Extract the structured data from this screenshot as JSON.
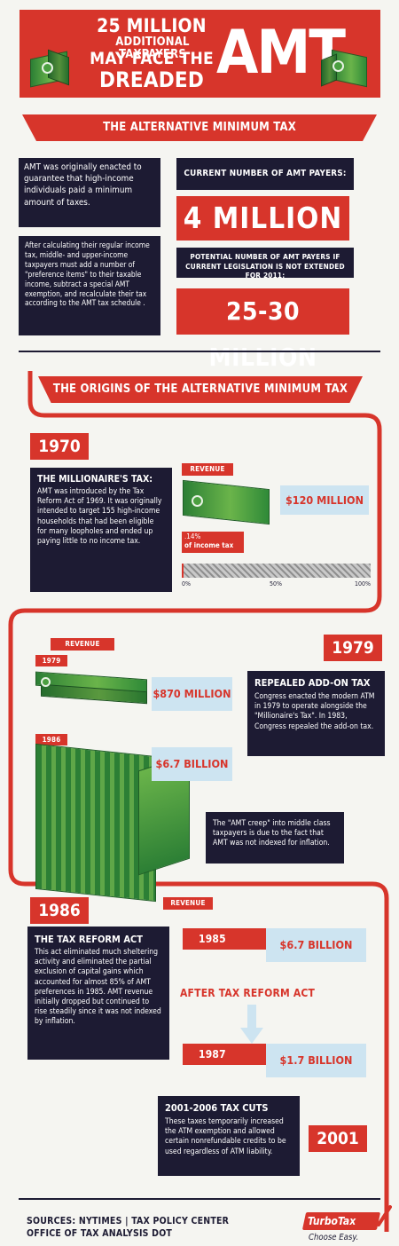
{
  "header": {
    "line1": "25 MILLION",
    "line2": "ADDITIONAL TAXPAYERS",
    "line3": "MAY FACE THE",
    "line4": "DREADED",
    "big": "AMT"
  },
  "section1": {
    "title": "THE ALTERNATIVE MINIMUM TAX",
    "intro": "AMT was originally enacted to guarantee that high-income individuals paid a minimum amount of taxes.",
    "detail": "After calculating their regular income tax, middle- and upper-income taxpayers must add a number of \"preference items\" to their taxable income, subtract a special AMT exemption, and recalculate their tax according to the AMT tax schedule .",
    "current_label": "CURRENT NUMBER OF AMT PAYERS:",
    "current_value": "4 MILLION",
    "potential_label": "POTENTIAL NUMBER OF AMT PAYERS IF CURRENT LEGISLATION IS NOT EXTENDED FOR 2011:",
    "potential_value": "25-30 MILLION"
  },
  "origins": {
    "title": "THE ORIGINS OF THE ALTERNATIVE MINIMUM TAX"
  },
  "y1970": {
    "year": "1970",
    "heading": "THE MILLIONAIRE'S TAX:",
    "body": "AMT was introduced by the Tax Reform Act of 1969. It was originally intended to target 155 high-income households that had been eligible for many loopholes and ended up paying little to no income tax.",
    "revenue_label": "REVENUE",
    "revenue_value": "$120 MILLION",
    "pct_value": ".14%",
    "pct_label": "of income tax",
    "pct": 0.14,
    "ticks": [
      "0%",
      "50%",
      "100%"
    ]
  },
  "y1979": {
    "year": "1979",
    "revenue_label": "REVENUE",
    "year_a": "1979",
    "value_a": "$870 MILLION",
    "year_b": "1986",
    "value_b": "$6.7 BILLION",
    "heading": "REPEALED ADD-ON TAX",
    "body": "Congress enacted the modern ATM in 1979 to operate alongside the \"Millionaire's Tax\". In 1983, Congress repealed the add-on tax.",
    "creep": "The \"AMT creep\" into middle class taxpayers is due to the fact that AMT was not indexed for inflation."
  },
  "y1986": {
    "year": "1986",
    "heading": "THE TAX REFORM ACT",
    "body": "This act eliminated much sheltering activity and eliminated the partial exclusion of capital gains which accounted for almost 85% of AMT preferences in 1985. AMT revenue initially dropped but continued to rise steadily since it was not indexed by inflation.",
    "revenue_label": "REVENUE",
    "year_a": "1985",
    "value_a": "$6.7 BILLION",
    "after": "AFTER TAX REFORM ACT",
    "year_b": "1987",
    "value_b": "$1.7 BILLION"
  },
  "y2001": {
    "year": "2001",
    "heading": "2001-2006 TAX CUTS",
    "body": "These taxes temporarily increased the ATM exemption and allowed certain nonrefundable credits to be used regardless of ATM liability."
  },
  "footer": {
    "sources1": "SOURCES: NYTIMES | TAX POLICY CENTER",
    "sources2": "OFFICE OF TAX ANALYSIS DOT",
    "brand": "TurboTax",
    "tagline": "Choose Easy."
  },
  "colors": {
    "red": "#d7352b",
    "navy": "#1d1b33",
    "sky": "#cde4f1",
    "green": "#4b9f40"
  },
  "icons": [
    "money-stack-icon",
    "down-arrow-icon",
    "checkmark-icon"
  ]
}
